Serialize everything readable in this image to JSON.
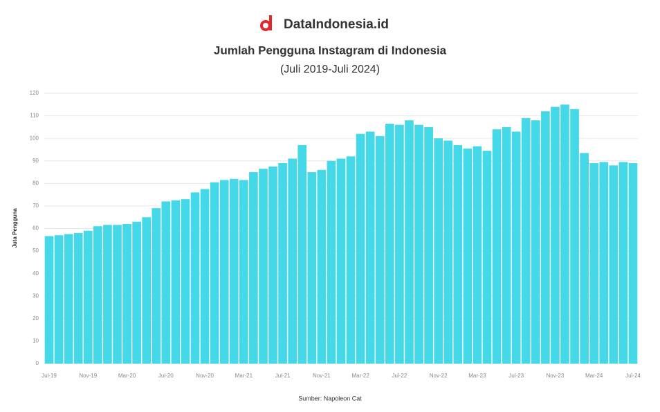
{
  "brand": "DataIndonesia.id",
  "chart_data": {
    "type": "bar",
    "title": "Jumlah Pengguna Instagram di Indonesia",
    "subtitle": "(Juli 2019-Juli 2024)",
    "y_label": "Juta Pengguna",
    "source": "Sumber: Napoleon Cat",
    "color": "#45d8e8",
    "grid": true,
    "ylim": [
      0,
      120
    ],
    "yticks": [
      0,
      10,
      20,
      30,
      40,
      50,
      60,
      70,
      80,
      90,
      100,
      110,
      120
    ],
    "categories": [
      "Jul-19",
      null,
      null,
      null,
      "Nov-19",
      null,
      null,
      null,
      "Mar-20",
      null,
      null,
      null,
      "Jul-20",
      null,
      null,
      null,
      "Nov-20",
      null,
      null,
      null,
      "Mar-21",
      null,
      null,
      null,
      "Jul-21",
      null,
      null,
      null,
      "Nov-21",
      null,
      null,
      null,
      "Mar-22",
      null,
      null,
      null,
      "Jul-22",
      null,
      null,
      null,
      "Nov-22",
      null,
      null,
      null,
      "Mar-23",
      null,
      null,
      null,
      "Jul-23",
      null,
      null,
      null,
      "Nov-23",
      null,
      null,
      null,
      "Mar-24",
      null,
      null,
      null,
      "Jul-24"
    ],
    "values": [
      56.6,
      57,
      57.5,
      58,
      59,
      61,
      61.6,
      61.6,
      62,
      63,
      65,
      69,
      72,
      72.5,
      73,
      76,
      77.5,
      80.5,
      81.5,
      82,
      81.5,
      85,
      86.5,
      87.5,
      89,
      91,
      97,
      85,
      86,
      90,
      91,
      92,
      102,
      103,
      101,
      106.5,
      106,
      108,
      106,
      105,
      100,
      99,
      97,
      95.5,
      96.5,
      94.5,
      104,
      105,
      103,
      109,
      108,
      112,
      114,
      115,
      113,
      93.5,
      89,
      89.5,
      88,
      89.5,
      89
    ]
  }
}
